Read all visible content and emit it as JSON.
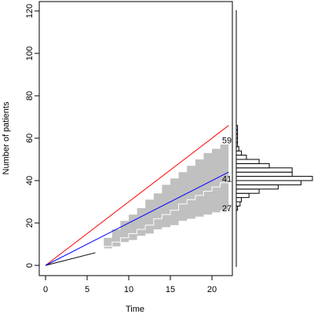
{
  "chart_data": {
    "type": "line",
    "title": "",
    "xlabel": "Time",
    "ylabel": "Number of patients",
    "xlim": [
      -1,
      23
    ],
    "ylim": [
      -4,
      122
    ],
    "xticks": [
      0,
      5,
      10,
      15,
      20
    ],
    "yticks": [
      0,
      20,
      40,
      60,
      80,
      100,
      120
    ],
    "grid": false,
    "legend": "none",
    "colors": {
      "observed": "#000000",
      "upper_line": "#ff0000",
      "mean_line": "#0000ff",
      "band": "#c0c0c0",
      "median_line": "#ffffff"
    },
    "series": [
      {
        "style": "observed",
        "x": [
          0,
          6
        ],
        "y": [
          0,
          6
        ]
      },
      {
        "style": "upper_line",
        "x": [
          0,
          22
        ],
        "y": [
          0,
          66
        ]
      },
      {
        "style": "mean_line",
        "x": [
          0,
          22
        ],
        "y": [
          0,
          44
        ]
      }
    ],
    "band": {
      "x": [
        6,
        7,
        8,
        9,
        10,
        11,
        12,
        13,
        14,
        15,
        16,
        17,
        18,
        19,
        20,
        21,
        22
      ],
      "lower": [
        6,
        8,
        9,
        11,
        12,
        14,
        15,
        17,
        18,
        19,
        21,
        22,
        23,
        24,
        25,
        26,
        27
      ],
      "upper": [
        6,
        13,
        17,
        21,
        24,
        27,
        31,
        34,
        38,
        41,
        44,
        47,
        50,
        53,
        55,
        57,
        59
      ]
    },
    "median_path": {
      "x": [
        6,
        7,
        8,
        9,
        10,
        11,
        12,
        13,
        14,
        15,
        16,
        17,
        18,
        19,
        20,
        21,
        22
      ],
      "y": [
        6,
        9,
        11,
        13,
        15,
        17,
        19,
        22,
        24,
        26,
        29,
        31,
        33,
        35,
        37,
        39,
        41
      ]
    },
    "annotations": [
      "59",
      "41",
      "27"
    ],
    "histogram": {
      "bins": [
        26,
        28,
        30,
        32,
        34,
        36,
        38,
        40,
        42,
        44,
        46,
        48,
        50,
        52,
        54,
        56,
        58,
        60,
        62,
        64,
        66,
        68,
        70
      ],
      "counts": [
        1,
        3,
        4,
        10,
        18,
        33,
        51,
        60,
        44,
        44,
        26,
        18,
        8,
        4,
        2,
        1,
        1,
        1,
        1,
        1,
        0,
        0
      ]
    }
  }
}
